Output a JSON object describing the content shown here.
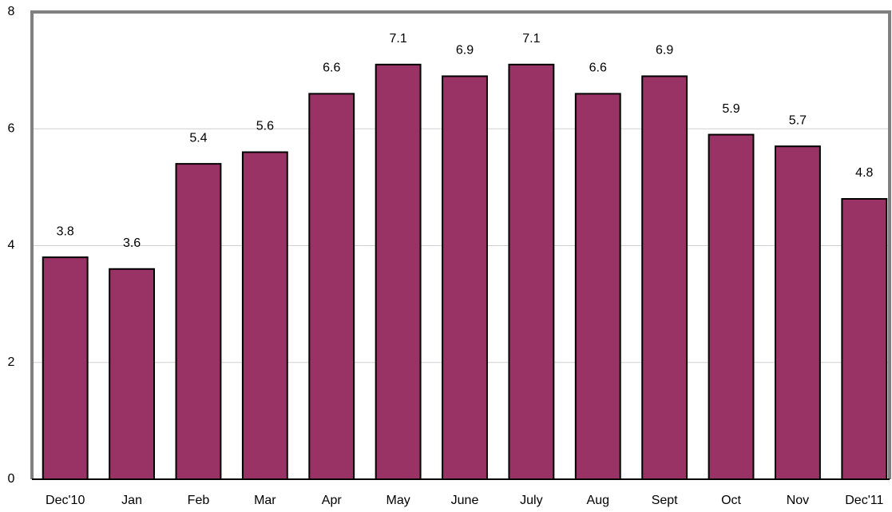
{
  "chart_data": {
    "type": "bar",
    "categories": [
      "Dec'10",
      "Jan",
      "Feb",
      "Mar",
      "Apr",
      "May",
      "June",
      "July",
      "Aug",
      "Sept",
      "Oct",
      "Nov",
      "Dec'11"
    ],
    "values": [
      3.8,
      3.6,
      5.4,
      5.6,
      6.6,
      7.1,
      6.9,
      7.1,
      6.6,
      6.9,
      5.9,
      5.7,
      4.8
    ],
    "color": "#993366",
    "ylim": [
      0,
      8
    ],
    "yticks": [
      0,
      2,
      4,
      6,
      8
    ],
    "grid": true
  }
}
